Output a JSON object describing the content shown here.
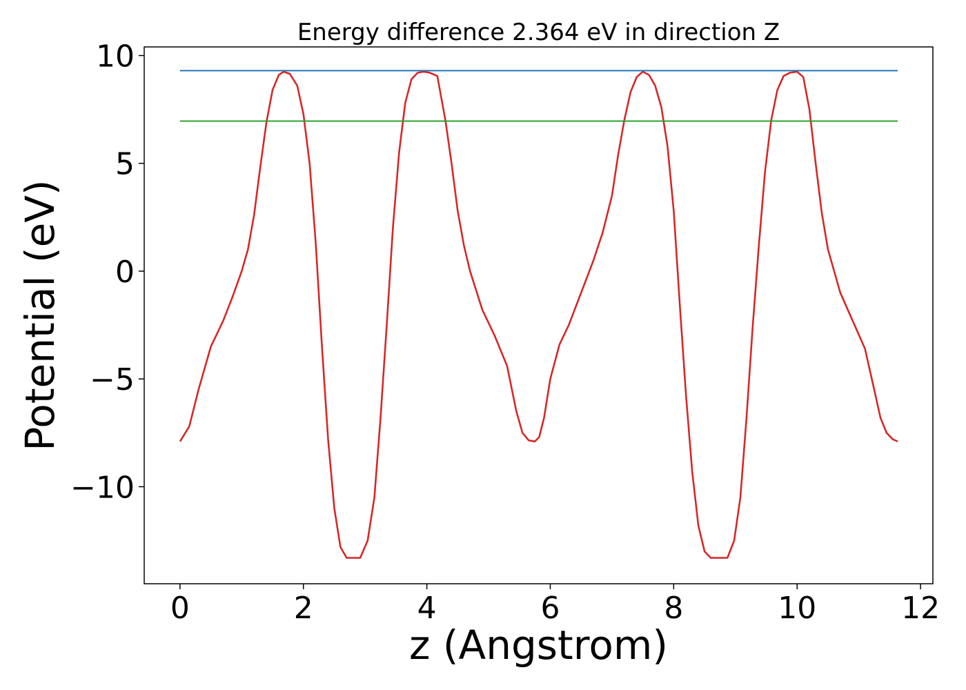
{
  "chart_data": {
    "type": "line",
    "title": "Energy difference 2.364 eV in direction Z",
    "xlabel": "z (Angstrom)",
    "ylabel": "Potential (eV)",
    "xlim": [
      -0.58,
      12.2
    ],
    "ylim": [
      -14.5,
      10.4
    ],
    "grid": false,
    "x_ticks": [
      0,
      2,
      4,
      6,
      8,
      10,
      12
    ],
    "x_tick_labels": [
      "0",
      "2",
      "4",
      "6",
      "8",
      "10",
      "12"
    ],
    "y_ticks": [
      -10,
      -5,
      0,
      5,
      10
    ],
    "y_tick_labels": [
      "−10",
      "−5",
      "0",
      "5",
      "10"
    ],
    "series": [
      {
        "color": "#d62728",
        "x": [
          0,
          0.15,
          0.3,
          0.5,
          0.7,
          0.85,
          1.0,
          1.1,
          1.2,
          1.3,
          1.4,
          1.5,
          1.6,
          1.68,
          1.78,
          1.9,
          2.0,
          2.1,
          2.2,
          2.3,
          2.4,
          2.5,
          2.6,
          2.7,
          2.8,
          2.92,
          3.04,
          3.15,
          3.25,
          3.35,
          3.45,
          3.55,
          3.65,
          3.75,
          3.85,
          3.95,
          4.05,
          4.17,
          4.3,
          4.4,
          4.5,
          4.6,
          4.7,
          4.8,
          4.9,
          5.1,
          5.3,
          5.45,
          5.55,
          5.65,
          5.75,
          5.82,
          5.9,
          6.0,
          6.15,
          6.3,
          6.5,
          6.7,
          6.85,
          7.0,
          7.1,
          7.2,
          7.3,
          7.4,
          7.5,
          7.6,
          7.7,
          7.8,
          7.9,
          8.0,
          8.1,
          8.2,
          8.3,
          8.4,
          8.5,
          8.6,
          8.75,
          8.87,
          8.98,
          9.08,
          9.18,
          9.28,
          9.38,
          9.48,
          9.58,
          9.68,
          9.78,
          9.88,
          10.0,
          10.1,
          10.2,
          10.3,
          10.4,
          10.5,
          10.7,
          10.9,
          11.1,
          11.25,
          11.35,
          11.45,
          11.55,
          11.63
        ],
        "y": [
          -7.9,
          -7.2,
          -5.5,
          -3.5,
          -2.3,
          -1.2,
          0.0,
          1.0,
          2.6,
          4.8,
          6.9,
          8.4,
          9.1,
          9.25,
          9.15,
          8.6,
          7.3,
          5.0,
          1.3,
          -3.5,
          -7.8,
          -11.0,
          -12.8,
          -13.3,
          -13.3,
          -13.3,
          -12.5,
          -10.5,
          -6.8,
          -2.5,
          2.0,
          5.5,
          7.8,
          8.9,
          9.2,
          9.25,
          9.2,
          9.05,
          7.0,
          5.0,
          2.8,
          1.2,
          0.0,
          -0.9,
          -1.8,
          -3.0,
          -4.4,
          -6.5,
          -7.5,
          -7.85,
          -7.9,
          -7.7,
          -6.8,
          -5.0,
          -3.4,
          -2.5,
          -1.0,
          0.5,
          1.8,
          3.5,
          5.4,
          7.0,
          8.3,
          9.0,
          9.25,
          9.1,
          8.6,
          7.6,
          5.8,
          2.8,
          -1.6,
          -5.8,
          -9.3,
          -11.8,
          -13.0,
          -13.3,
          -13.3,
          -13.3,
          -12.5,
          -10.5,
          -6.8,
          -2.6,
          1.2,
          4.6,
          7.0,
          8.4,
          9.05,
          9.2,
          9.25,
          9.0,
          7.5,
          5.0,
          2.7,
          1.0,
          -1.0,
          -2.3,
          -3.6,
          -5.5,
          -6.8,
          -7.5,
          -7.8,
          -7.9
        ]
      },
      {
        "color": "#1f77b4",
        "x": [
          0,
          11.63
        ],
        "y": [
          9.3,
          9.3
        ]
      },
      {
        "color": "#2ca02c",
        "x": [
          0,
          11.63
        ],
        "y": [
          6.96,
          6.96
        ]
      }
    ]
  }
}
